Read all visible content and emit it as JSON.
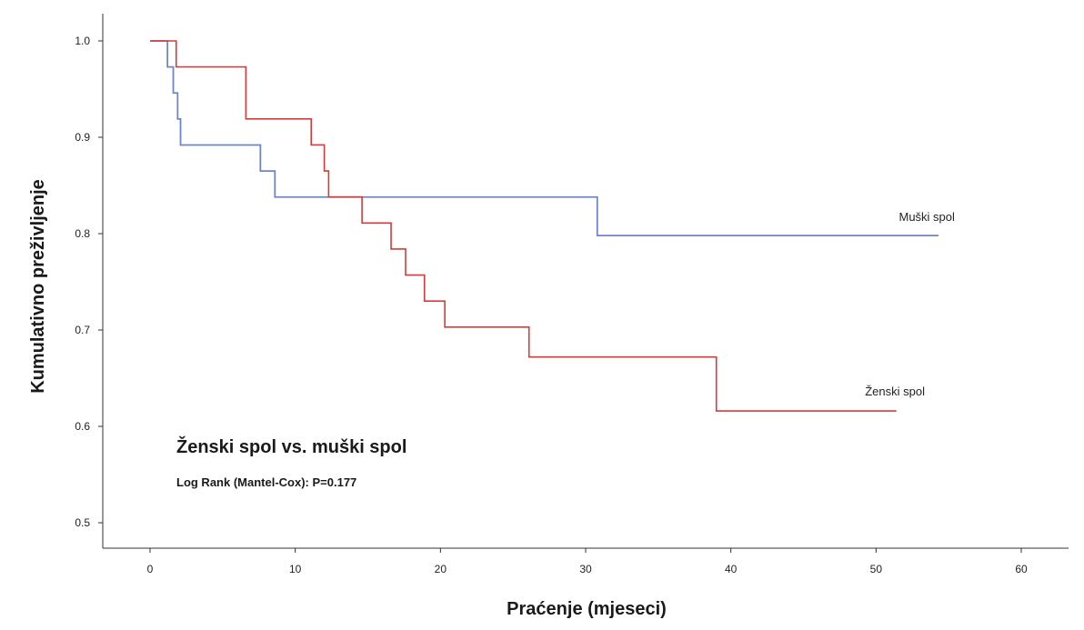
{
  "chart_data": {
    "type": "line",
    "step": true,
    "xlabel": "Praćenje (mjeseci)",
    "ylabel": "Kumulativno preživljenje",
    "xlim": [
      -3,
      63
    ],
    "ylim": [
      0.47,
      1.03
    ],
    "xticks": [
      0,
      10,
      20,
      30,
      40,
      50,
      60
    ],
    "yticks": [
      0.5,
      0.6,
      0.7,
      0.8,
      0.9,
      1.0
    ],
    "xtick_labels": [
      "0",
      "10",
      "20",
      "30",
      "40",
      "50",
      "60"
    ],
    "ytick_labels": [
      "0.5",
      "0.6",
      "0.7",
      "0.8",
      "0.9",
      "1.0"
    ],
    "grid": false,
    "series": [
      {
        "name": "Muški spol",
        "color": "#6f86c4",
        "x": [
          0,
          1.2,
          1.6,
          1.9,
          2.1,
          7.6,
          8.6,
          30.8,
          54.3
        ],
        "y": [
          1.0,
          0.973,
          0.946,
          0.919,
          0.892,
          0.865,
          0.838,
          0.798,
          0.798
        ]
      },
      {
        "name": "Ženski spol",
        "color": "#d63a3a",
        "x": [
          0,
          1.8,
          6.6,
          11.1,
          12.0,
          12.3,
          14.6,
          16.6,
          17.6,
          18.9,
          20.3,
          26.1,
          39.0,
          51.4
        ],
        "y": [
          1.0,
          0.973,
          0.919,
          0.892,
          0.865,
          0.838,
          0.811,
          0.784,
          0.757,
          0.73,
          0.703,
          0.672,
          0.616,
          0.616
        ]
      }
    ],
    "series_labels": [
      {
        "text": "Muški spol",
        "x": 53.5,
        "y": 0.813
      },
      {
        "text": "Ženski spol",
        "x": 51.3,
        "y": 0.632
      }
    ],
    "annotations": {
      "comparison": "Ženski spol vs. muški spol",
      "test": "Log Rank (Mantel-Cox): P=0.177"
    }
  }
}
